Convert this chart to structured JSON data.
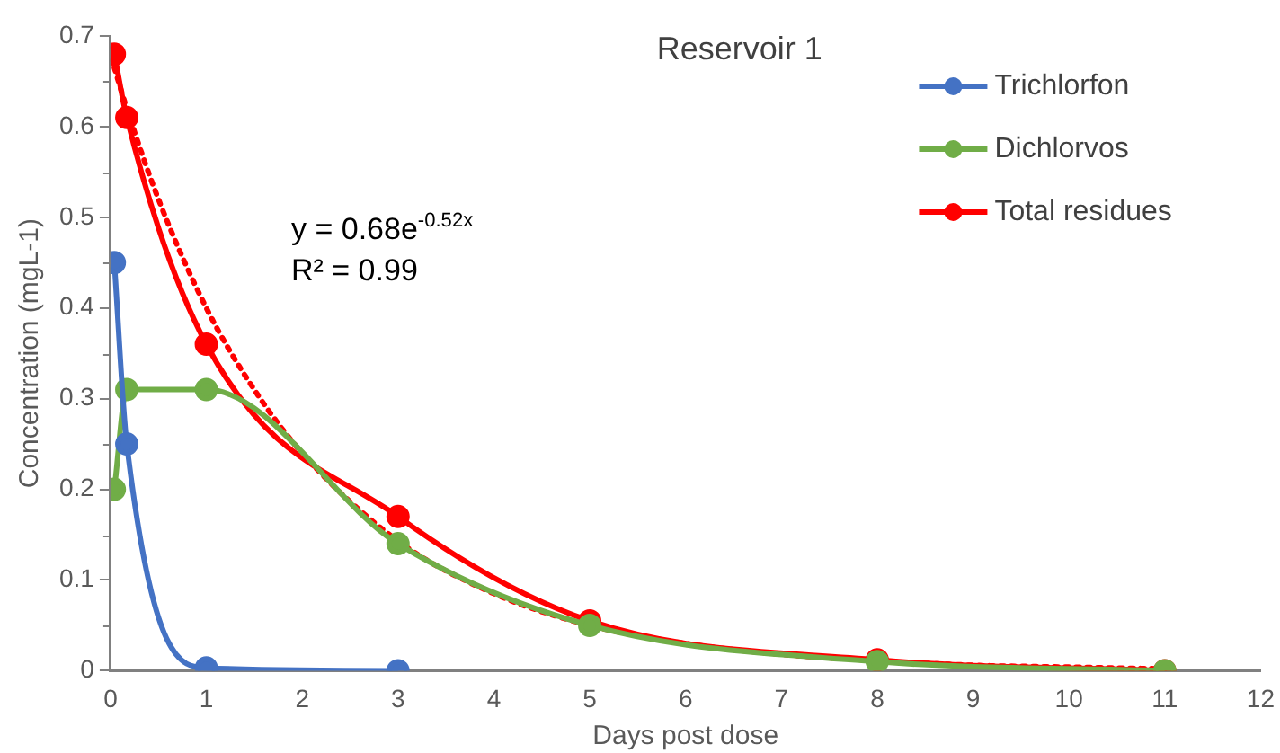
{
  "chart_data": {
    "type": "line",
    "title": "Reservoir 1",
    "xlabel": "Days post dose",
    "ylabel": "Concentration (mgL-1)",
    "xlim": [
      0,
      12
    ],
    "xticks": [
      0,
      1,
      2,
      3,
      4,
      5,
      6,
      7,
      8,
      9,
      10,
      11,
      12
    ],
    "ylim": [
      0,
      0.7
    ],
    "yticks": [
      0,
      0.1,
      0.2,
      0.3,
      0.4,
      0.5,
      0.6,
      0.7
    ],
    "grid": false,
    "legend": "top right",
    "marker": "circle",
    "line_style": "solid",
    "annotations": [
      "y = 0.68e$^{-0.52x}$",
      "R² = 0.99"
    ],
    "series": [
      {
        "name": "Trichlorfon",
        "color": "#4472c4",
        "x": [
          0.04,
          0.17,
          1,
          3
        ],
        "values": [
          0.45,
          0.25,
          0.003,
          0
        ]
      },
      {
        "name": "Dichlorvos",
        "color": "#70ad47",
        "x": [
          0.04,
          0.17,
          1,
          3,
          5,
          8,
          11
        ],
        "values": [
          0.2,
          0.31,
          0.31,
          0.14,
          0.05,
          0.01,
          0
        ]
      },
      {
        "name": "Total residues",
        "color": "#ff0000",
        "x": [
          0.04,
          0.17,
          1,
          3,
          5,
          8,
          11
        ],
        "values": [
          0.68,
          0.61,
          0.36,
          0.17,
          0.055,
          0.012,
          0
        ]
      },
      {
        "color": "#ff0000",
        "marker": "none",
        "line_style": "dotted",
        "x": [
          0.04,
          0.17,
          0.5,
          1,
          1.5,
          2,
          3,
          4,
          5,
          6,
          7,
          8,
          9,
          10,
          11
        ],
        "values": [
          0.665,
          0.62,
          0.52,
          0.4,
          0.31,
          0.24,
          0.143,
          0.085,
          0.05,
          0.03,
          0.018,
          0.011,
          0.006,
          0.004,
          0.002
        ]
      }
    ]
  }
}
